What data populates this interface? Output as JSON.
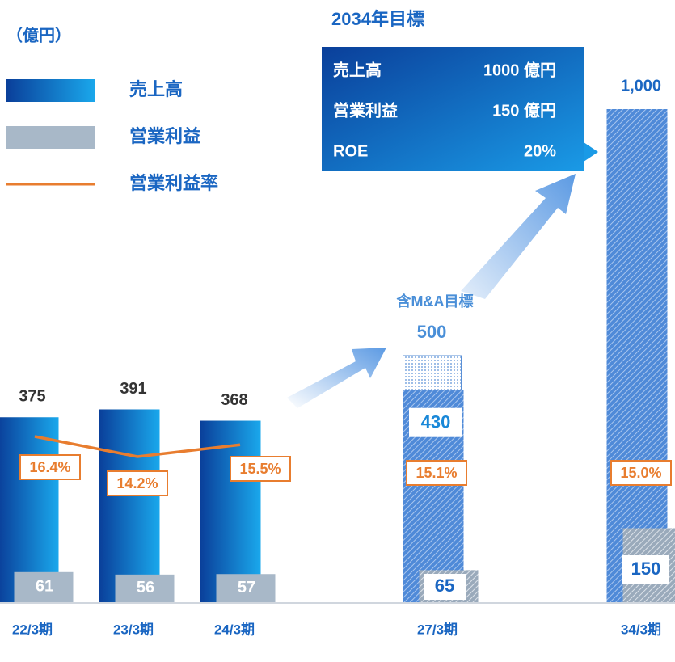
{
  "chart_data": {
    "type": "bar",
    "unit": "（億円）",
    "categories": [
      "22/3期",
      "23/3期",
      "24/3期",
      "27/3期",
      "34/3期"
    ],
    "series": [
      {
        "name": "売上高",
        "color": "#1a7fd4",
        "values": [
          375,
          391,
          368,
          430,
          1000
        ],
        "value_labels": [
          "375",
          "391",
          "368",
          "430",
          "1,000"
        ]
      },
      {
        "name": "営業利益",
        "color": "#a8b8c8",
        "values": [
          61,
          56,
          57,
          65,
          150
        ]
      },
      {
        "name": "営業利益率",
        "color": "#e87d2f",
        "values": [
          16.4,
          14.2,
          15.5,
          15.1,
          15.0
        ],
        "value_labels": [
          "16.4%",
          "14.2%",
          "15.5%",
          "15.1%",
          "15.0%"
        ]
      }
    ],
    "ma_target": {
      "label": "含M&A目標",
      "value": 500,
      "category": "27/3期"
    }
  },
  "target": {
    "title": "2034年目標",
    "rows": [
      [
        "売上高",
        "1000 億円"
      ],
      [
        "営業利益",
        "150 億円"
      ],
      [
        "ROE",
        "20%"
      ]
    ]
  }
}
